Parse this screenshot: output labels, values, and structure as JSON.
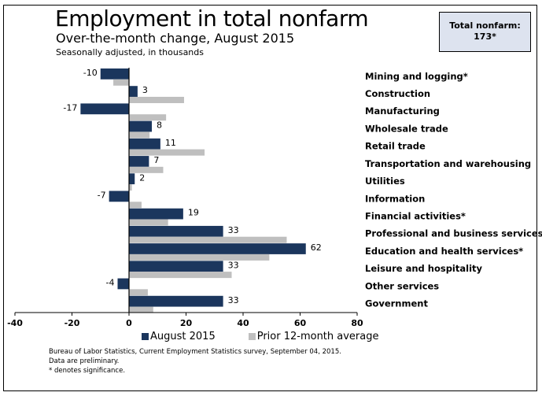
{
  "header": {
    "title": "Employment in total nonfarm",
    "subtitle": "Over-the-month change, August 2015",
    "units": "Seasonally adjusted, in thousands"
  },
  "total_box": {
    "label": "Total nonfarm:",
    "value": "173*"
  },
  "legend": {
    "series1": "August 2015",
    "series2": "Prior 12-month average"
  },
  "source": {
    "line1": "Bureau of Labor Statistics, Current Employment Statistics survey, September 04, 2015.",
    "line2": "Data are preliminary.",
    "line3": "* denotes significance."
  },
  "colors": {
    "august": "#1b365d",
    "prior": "#bfbfbf",
    "box_fill": "#dde3ef"
  },
  "chart_data": {
    "type": "bar",
    "orientation": "horizontal",
    "title": "Employment in total nonfarm",
    "subtitle": "Over-the-month change, August 2015",
    "xlabel": "",
    "ylabel": "Seasonally adjusted, in thousands",
    "xlim": [
      -40,
      80
    ],
    "xticks": [
      -40,
      -20,
      0,
      20,
      40,
      60,
      80
    ],
    "grid": false,
    "legend_position": "bottom",
    "categories": [
      "Mining and logging*",
      "Construction",
      "Manufacturing",
      "Wholesale trade",
      "Retail trade",
      "Transportation and warehousing",
      "Utilities",
      "Information",
      "Financial activities*",
      "Professional and business services",
      "Education and health services*",
      "Leisure and hospitality",
      "Other services",
      "Government"
    ],
    "series": [
      {
        "name": "August 2015",
        "color": "#1b365d",
        "labeled": true,
        "values": [
          -10,
          3,
          -17,
          8,
          11,
          7,
          2,
          -7,
          19,
          33,
          62,
          33,
          -4,
          33
        ]
      },
      {
        "name": "Prior 12-month average",
        "color": "#bfbfbf",
        "labeled": false,
        "values": [
          -5.5,
          19.3,
          13,
          7.2,
          26.5,
          12,
          1,
          4.4,
          13.7,
          55.3,
          49.2,
          36,
          6.6,
          8.5
        ]
      }
    ]
  }
}
